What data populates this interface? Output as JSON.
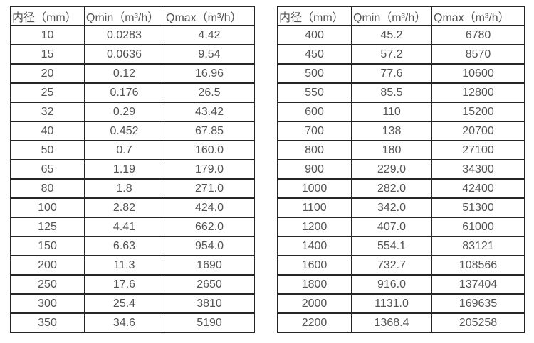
{
  "colors": {
    "border": "#262626",
    "text": "#545454",
    "background": "#ffffff"
  },
  "tables": [
    {
      "name": "flow-table-small-diameters",
      "headers": [
        "内径（mm）",
        "Qmin（m³/h）",
        "Qmax（m³/h）"
      ],
      "rows": [
        [
          "10",
          "0.0283",
          "4.42"
        ],
        [
          "15",
          "0.0636",
          "9.54"
        ],
        [
          "20",
          "0.12",
          "16.96"
        ],
        [
          "25",
          "0.176",
          "26.5"
        ],
        [
          "32",
          "0.29",
          "43.42"
        ],
        [
          "40",
          "0.452",
          "67.85"
        ],
        [
          "50",
          "0.7",
          "160.0"
        ],
        [
          "65",
          "1.19",
          "179.0"
        ],
        [
          "80",
          "1.8",
          "271.0"
        ],
        [
          "100",
          "2.82",
          "424.0"
        ],
        [
          "125",
          "4.41",
          "662.0"
        ],
        [
          "150",
          "6.63",
          "954.0"
        ],
        [
          "200",
          "11.3",
          "1690"
        ],
        [
          "250",
          "17.6",
          "2650"
        ],
        [
          "300",
          "25.4",
          "3810"
        ],
        [
          "350",
          "34.6",
          "5190"
        ]
      ]
    },
    {
      "name": "flow-table-large-diameters",
      "headers": [
        "内径（mm）",
        "Qmin（m³/h）",
        "Qmax（m³/h）"
      ],
      "rows": [
        [
          "400",
          "45.2",
          "6780"
        ],
        [
          "450",
          "57.2",
          "8570"
        ],
        [
          "500",
          "77.6",
          "10600"
        ],
        [
          "550",
          "85.5",
          "12800"
        ],
        [
          "600",
          "110",
          "15200"
        ],
        [
          "700",
          "138",
          "20700"
        ],
        [
          "800",
          "180",
          "27100"
        ],
        [
          "900",
          "229.0",
          "34300"
        ],
        [
          "1000",
          "282.0",
          "42400"
        ],
        [
          "1100",
          "342.0",
          "51300"
        ],
        [
          "1200",
          "407.0",
          "61000"
        ],
        [
          "1400",
          "554.1",
          "83121"
        ],
        [
          "1600",
          "732.7",
          "108566"
        ],
        [
          "1800",
          "916.0",
          "137404"
        ],
        [
          "2000",
          "1131.0",
          "169635"
        ],
        [
          "2200",
          "1368.4",
          "205258"
        ]
      ]
    }
  ]
}
